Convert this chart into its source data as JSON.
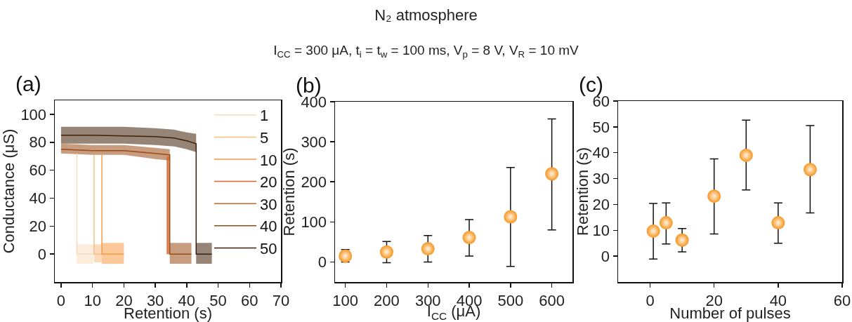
{
  "chart_data": [
    {
      "type": "line",
      "annotations": [
        "(a)"
      ],
      "xlabel": "Retention (s)",
      "ylabel": "Conductance (μS)",
      "xlim": [
        -2,
        70
      ],
      "xticks": [
        0,
        10,
        20,
        30,
        40,
        50,
        60,
        70
      ],
      "ylim": [
        -20,
        110
      ],
      "yticks": [
        0,
        20,
        40,
        60,
        80,
        100
      ],
      "legend": "top right",
      "line_style": "solid",
      "marker": "none",
      "series": [
        {
          "name": "1",
          "color": "#f7dcc0",
          "x": [
            5,
            5,
            10.3
          ],
          "values": [
            72,
            0,
            0
          ],
          "lower": [
            null,
            -7,
            -7
          ],
          "upper": [
            null,
            7,
            7
          ]
        },
        {
          "name": "5",
          "color": "#f7be85",
          "x": [
            10.5,
            10.5,
            13
          ],
          "values": [
            71,
            0,
            0
          ],
          "lower": [
            null,
            -6,
            -6
          ],
          "upper": [
            null,
            7,
            7
          ]
        },
        {
          "name": "10",
          "color": "#f59a45",
          "x": [
            13,
            13,
            20
          ],
          "values": [
            71,
            0,
            0
          ],
          "lower": [
            null,
            -7,
            -7
          ],
          "upper": [
            null,
            8,
            8
          ]
        },
        {
          "name": "20",
          "color": "#e8602a",
          "x": [
            33.8,
            33.8
          ],
          "values": [
            70,
            0
          ]
        },
        {
          "name": "30",
          "color": "#c86a25",
          "x": [
            34.2,
            34.2
          ],
          "values": [
            70,
            0
          ]
        },
        {
          "name": "40",
          "color": "#9a4a15",
          "x": [
            0,
            10,
            20,
            30,
            34.6,
            34.6,
            41.5
          ],
          "values": [
            75,
            74,
            74,
            72,
            71,
            0,
            0
          ],
          "lower": [
            72,
            71,
            71,
            68,
            67,
            -7,
            -7
          ],
          "upper": [
            79,
            78,
            78,
            76,
            75,
            8,
            8
          ]
        },
        {
          "name": "50",
          "color": "#3f2008",
          "x": [
            0,
            10,
            20,
            30,
            36,
            40,
            43,
            43,
            48
          ],
          "values": [
            85,
            85,
            84.5,
            84,
            83,
            81,
            79,
            0,
            0
          ],
          "lower": [
            79,
            79,
            79,
            78,
            77,
            75,
            73,
            -7,
            -7
          ],
          "upper": [
            91,
            91,
            91,
            90,
            89,
            87,
            86,
            8,
            8
          ]
        }
      ]
    },
    {
      "type": "scatter",
      "title": "N₂ atmosphere",
      "subtitle": "I$_{CC}$ = 300 μA, t$_{i}$ = t$_{w}$ = 100 ms, V$_{p}$ = 8 V, V$_{R}$ = 10 mV",
      "annotations": [
        "(b)"
      ],
      "xlabel": "I$_{CC}$ (μA)",
      "ylabel": "Retention (s)",
      "xlim": [
        75,
        650
      ],
      "xticks": [
        100,
        200,
        300,
        400,
        500,
        600
      ],
      "ylim": [
        -50,
        400
      ],
      "yticks": [
        0,
        100,
        200,
        300,
        400
      ],
      "marker": "circle",
      "legend": false,
      "x": [
        100,
        200,
        300,
        400,
        500,
        600
      ],
      "values": [
        15,
        25,
        33,
        61,
        113,
        220
      ],
      "color": "#f7941d",
      "errors": [
        [
          0,
          31
        ],
        [
          -2,
          51
        ],
        [
          0,
          66
        ],
        [
          15,
          106
        ],
        [
          -11,
          236
        ],
        [
          80,
          357
        ]
      ]
    },
    {
      "type": "scatter",
      "annotations": [
        "(c)"
      ],
      "xlabel": "Number of pulses",
      "ylabel": "Retention (s)",
      "xlim": [
        -10,
        60
      ],
      "xticks": [
        0,
        20,
        40,
        60
      ],
      "ylim": [
        -10,
        60
      ],
      "yticks": [
        0,
        10,
        20,
        30,
        40,
        50,
        60
      ],
      "marker": "circle",
      "legend": false,
      "x": [
        1,
        5,
        10,
        20,
        30,
        40,
        50
      ],
      "values": [
        9.7,
        12.9,
        6.2,
        23.2,
        39,
        12.9,
        33.5
      ],
      "color": "#f7941d",
      "errors": [
        [
          -1.1,
          20.4
        ],
        [
          4.7,
          20.6
        ],
        [
          1.7,
          10.7
        ],
        [
          8.6,
          37.6
        ],
        [
          25.6,
          52.6
        ],
        [
          5,
          20.6
        ],
        [
          16.7,
          50.5
        ]
      ]
    }
  ]
}
